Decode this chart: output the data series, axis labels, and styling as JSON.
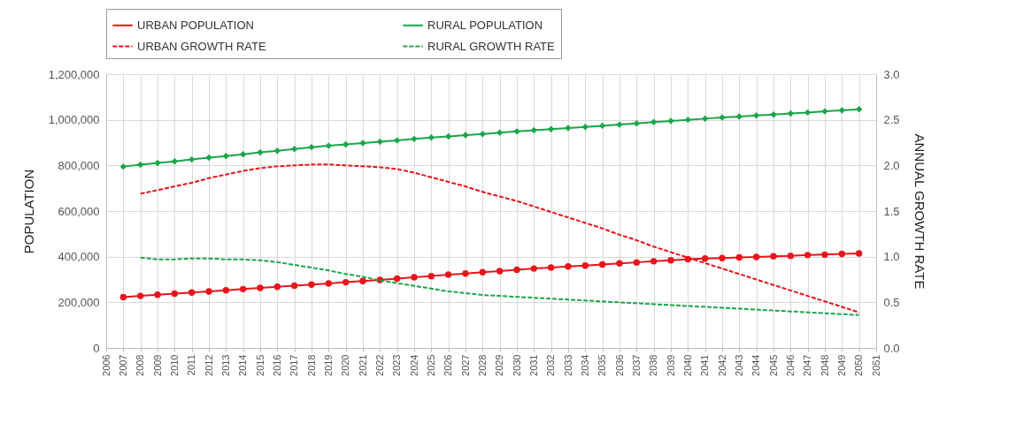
{
  "chart_data": {
    "type": "line",
    "x": [
      2007,
      2008,
      2009,
      2010,
      2011,
      2012,
      2013,
      2014,
      2015,
      2016,
      2017,
      2018,
      2019,
      2020,
      2021,
      2022,
      2023,
      2024,
      2025,
      2026,
      2027,
      2028,
      2029,
      2030,
      2031,
      2032,
      2033,
      2034,
      2035,
      2036,
      2037,
      2038,
      2039,
      2040,
      2041,
      2042,
      2043,
      2044,
      2045,
      2046,
      2047,
      2048,
      2049,
      2050
    ],
    "xlim": [
      2006,
      2051
    ],
    "xticks": [
      2006,
      2007,
      2008,
      2009,
      2010,
      2011,
      2012,
      2013,
      2014,
      2015,
      2016,
      2017,
      2018,
      2019,
      2020,
      2021,
      2022,
      2023,
      2024,
      2025,
      2026,
      2027,
      2028,
      2029,
      2030,
      2031,
      2032,
      2033,
      2034,
      2035,
      2036,
      2037,
      2038,
      2039,
      2040,
      2041,
      2042,
      2043,
      2044,
      2045,
      2046,
      2047,
      2048,
      2049,
      2050,
      2051
    ],
    "ylabel": "POPULATION",
    "y2label": "ANNUAL GROWTH RATE",
    "ylim": [
      0,
      1200000
    ],
    "yticks": [
      {
        "value": 0,
        "label": "0"
      },
      {
        "value": 200000,
        "label": "200,000"
      },
      {
        "value": 400000,
        "label": "400,000"
      },
      {
        "value": 600000,
        "label": "600,000"
      },
      {
        "value": 800000,
        "label": "800,000"
      },
      {
        "value": 1000000,
        "label": "1,000,000"
      },
      {
        "value": 1200000,
        "label": "1,200,000"
      }
    ],
    "y2lim": [
      0,
      3
    ],
    "y2ticks": [
      {
        "value": 0,
        "label": "0.0"
      },
      {
        "value": 0.5,
        "label": "0.5"
      },
      {
        "value": 1,
        "label": "1.0"
      },
      {
        "value": 1.5,
        "label": "1.5"
      },
      {
        "value": 2,
        "label": "2.0"
      },
      {
        "value": 2.5,
        "label": "2.5"
      },
      {
        "value": 3,
        "label": "3.0"
      }
    ],
    "grid": true,
    "legend": "top",
    "series": [
      {
        "name": "URBAN POPULATION",
        "color": "#e8141b",
        "marker": "circle",
        "line_style": "solid",
        "values": [
          223000,
          228000,
          233000,
          238000,
          243000,
          248000,
          253000,
          258000,
          263000,
          268000,
          273000,
          278000,
          283000,
          288000,
          293000,
          298000,
          304000,
          310000,
          315000,
          321000,
          326000,
          332000,
          337000,
          343000,
          348000,
          352000,
          357000,
          361000,
          366000,
          371000,
          375000,
          380000,
          384000,
          389000,
          392000,
          394000,
          397000,
          399000,
          402000,
          404000,
          407000,
          409000,
          412000,
          414000
        ]
      },
      {
        "name": "RURAL POPULATION",
        "color": "#1aa64a",
        "marker": "diamond",
        "line_style": "solid",
        "values": [
          795000,
          803000,
          811000,
          818000,
          826000,
          834000,
          841000,
          849000,
          857000,
          864000,
          872000,
          880000,
          886000,
          892000,
          898000,
          904000,
          910000,
          916000,
          922000,
          927000,
          933000,
          938000,
          944000,
          949000,
          954000,
          959000,
          964000,
          969000,
          974000,
          979000,
          984000,
          990000,
          995000,
          1000000,
          1005000,
          1010000,
          1014000,
          1019000,
          1023000,
          1028000,
          1032000,
          1037000,
          1041000,
          1046000
        ]
      },
      {
        "name": "URBAN GROWTH RATE",
        "color": "#e8141b",
        "marker": "none",
        "line_style": "dashed",
        "axis": "y2",
        "values": [
          null,
          1.69,
          1.73,
          1.77,
          1.81,
          1.86,
          1.9,
          1.94,
          1.97,
          1.99,
          2.0,
          2.01,
          2.01,
          2.0,
          1.99,
          1.98,
          1.96,
          1.92,
          1.87,
          1.82,
          1.77,
          1.71,
          1.66,
          1.61,
          1.55,
          1.49,
          1.43,
          1.37,
          1.31,
          1.24,
          1.18,
          1.11,
          1.05,
          0.99,
          0.93,
          0.87,
          0.81,
          0.75,
          0.69,
          0.63,
          0.57,
          0.51,
          0.45,
          0.39
        ]
      },
      {
        "name": "RURAL GROWTH RATE",
        "color": "#1aa64a",
        "marker": "none",
        "line_style": "dashed",
        "axis": "y2",
        "values": [
          null,
          0.99,
          0.97,
          0.97,
          0.98,
          0.98,
          0.97,
          0.97,
          0.96,
          0.94,
          0.91,
          0.88,
          0.85,
          0.81,
          0.78,
          0.74,
          0.71,
          0.68,
          0.65,
          0.62,
          0.6,
          0.58,
          0.57,
          0.56,
          0.55,
          0.54,
          0.53,
          0.52,
          0.51,
          0.5,
          0.49,
          0.48,
          0.47,
          0.46,
          0.45,
          0.44,
          0.43,
          0.42,
          0.41,
          0.4,
          0.39,
          0.38,
          0.37,
          0.36
        ]
      }
    ]
  }
}
